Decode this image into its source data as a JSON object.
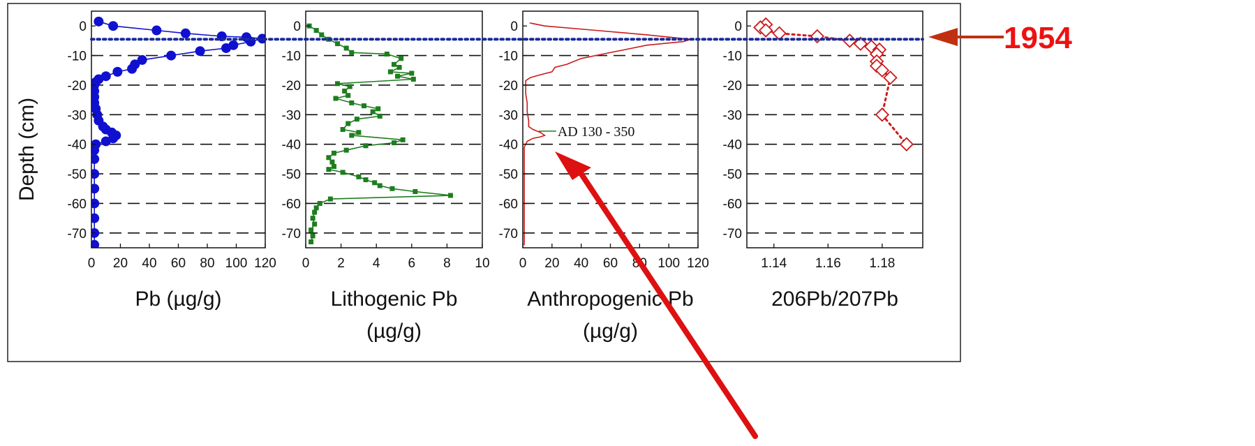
{
  "chart_data": {
    "type": "scatter",
    "y_axis_label": "Depth (cm)",
    "y_range": [
      -75,
      5
    ],
    "y_ticks": [
      0,
      -10,
      -20,
      -30,
      -40,
      -50,
      -60,
      -70
    ],
    "gridlines_y": [
      -10,
      -20,
      -30,
      -40,
      -50,
      -60,
      -70
    ],
    "gridline_style": "dashed",
    "colors": {
      "series1": "#1010d0",
      "series2": "#1e7d1e",
      "series3": "#cc1a1a",
      "series4": "#cc1a1a",
      "reference": "#1a2a9a",
      "arrow": "#dd1111",
      "marker_label": "#ee1111",
      "marker_arrow": "#c03010"
    },
    "reference_line": {
      "depth": -4.5,
      "style": "dotted",
      "label": "1954"
    },
    "panels": [
      {
        "xlabel": [
          "Pb (µg/g)"
        ],
        "x_range": [
          0,
          120
        ],
        "x_ticks": [
          0,
          20,
          40,
          60,
          80,
          100,
          120
        ],
        "series": [
          {
            "style": "line+filled-circle",
            "color": "#1010d0",
            "points": [
              [
                5,
                1.5
              ],
              [
                15,
                0
              ],
              [
                45,
                -1.5
              ],
              [
                65,
                -2.5
              ],
              [
                90,
                -3.5
              ],
              [
                107,
                -3.8
              ],
              [
                118,
                -4.3
              ],
              [
                110,
                -5.3
              ],
              [
                98,
                -6.5
              ],
              [
                93,
                -7.5
              ],
              [
                75,
                -8.5
              ],
              [
                55,
                -10
              ],
              [
                35,
                -11.5
              ],
              [
                30,
                -13
              ],
              [
                28,
                -14.5
              ],
              [
                18,
                -15.5
              ],
              [
                10,
                -17
              ],
              [
                5,
                -18
              ],
              [
                3,
                -19
              ],
              [
                2,
                -20
              ],
              [
                2,
                -22
              ],
              [
                2,
                -24
              ],
              [
                2,
                -26
              ],
              [
                3,
                -28
              ],
              [
                4,
                -30
              ],
              [
                5,
                -32
              ],
              [
                8,
                -34
              ],
              [
                10,
                -35
              ],
              [
                14,
                -36
              ],
              [
                17,
                -37
              ],
              [
                15,
                -38
              ],
              [
                10,
                -39
              ],
              [
                3,
                -40
              ],
              [
                2,
                -42
              ],
              [
                2,
                -45
              ],
              [
                2,
                -50
              ],
              [
                2,
                -55
              ],
              [
                2,
                -60
              ],
              [
                2,
                -65
              ],
              [
                2,
                -70
              ],
              [
                2,
                -74
              ]
            ]
          }
        ]
      },
      {
        "xlabel": [
          "Lithogenic Pb",
          "(µg/g)"
        ],
        "x_range": [
          0,
          10
        ],
        "x_ticks": [
          0,
          2,
          4,
          6,
          8,
          10
        ],
        "series": [
          {
            "style": "line+filled-square",
            "color": "#1e7d1e",
            "points": [
              [
                0.2,
                0
              ],
              [
                0.6,
                -1.5
              ],
              [
                0.9,
                -3
              ],
              [
                1.3,
                -4.5
              ],
              [
                1.8,
                -6
              ],
              [
                2.3,
                -7.5
              ],
              [
                2.6,
                -9
              ],
              [
                4.6,
                -9.5
              ],
              [
                5.4,
                -11
              ],
              [
                5.0,
                -13
              ],
              [
                5.3,
                -14
              ],
              [
                4.8,
                -15.5
              ],
              [
                6.0,
                -16
              ],
              [
                5.2,
                -17
              ],
              [
                6.1,
                -18
              ],
              [
                1.8,
                -19.5
              ],
              [
                2.5,
                -20.5
              ],
              [
                2.2,
                -22
              ],
              [
                2.4,
                -23.5
              ],
              [
                1.7,
                -24.5
              ],
              [
                2.6,
                -26
              ],
              [
                3.3,
                -27
              ],
              [
                4.1,
                -28
              ],
              [
                3.8,
                -29
              ],
              [
                4.2,
                -30.5
              ],
              [
                2.9,
                -31.5
              ],
              [
                2.4,
                -33
              ],
              [
                2.1,
                -35
              ],
              [
                3.0,
                -36
              ],
              [
                2.6,
                -37
              ],
              [
                5.5,
                -38.5
              ],
              [
                5.0,
                -39.5
              ],
              [
                3.4,
                -40.5
              ],
              [
                2.3,
                -42
              ],
              [
                1.6,
                -43
              ],
              [
                1.3,
                -44.5
              ],
              [
                1.5,
                -46
              ],
              [
                1.6,
                -47.5
              ],
              [
                1.3,
                -48.5
              ],
              [
                2.1,
                -49.5
              ],
              [
                3.0,
                -51
              ],
              [
                3.4,
                -52
              ],
              [
                3.9,
                -53
              ],
              [
                4.2,
                -54
              ],
              [
                4.9,
                -55
              ],
              [
                6.2,
                -56
              ],
              [
                8.2,
                -57.3
              ],
              [
                1.4,
                -58.5
              ],
              [
                0.8,
                -60
              ],
              [
                0.6,
                -61.5
              ],
              [
                0.5,
                -63
              ],
              [
                0.4,
                -65
              ],
              [
                0.5,
                -67
              ],
              [
                0.3,
                -69
              ],
              [
                0.4,
                -71
              ],
              [
                0.3,
                -73
              ]
            ]
          }
        ]
      },
      {
        "xlabel": [
          "Anthropogenic Pb",
          "(µg/g)"
        ],
        "x_range": [
          0,
          120
        ],
        "x_ticks": [
          0,
          20,
          40,
          60,
          80,
          100,
          120
        ],
        "annotation": {
          "text": "AD  130 - 350",
          "x": 20,
          "y": -36.5
        },
        "series": [
          {
            "style": "line",
            "color": "#cc1a1a",
            "points": [
              [
                5,
                1
              ],
              [
                15,
                0
              ],
              [
                50,
                -1.5
              ],
              [
                85,
                -3
              ],
              [
                115,
                -4.5
              ],
              [
                110,
                -5.3
              ],
              [
                85,
                -6.5
              ],
              [
                70,
                -8
              ],
              [
                55,
                -9.5
              ],
              [
                40,
                -11
              ],
              [
                35,
                -12
              ],
              [
                30,
                -13
              ],
              [
                22,
                -14
              ],
              [
                20,
                -15.5
              ],
              [
                12,
                -16.5
              ],
              [
                5,
                -17.5
              ],
              [
                2,
                -18.5
              ],
              [
                2,
                -20
              ],
              [
                2,
                -23
              ],
              [
                3,
                -26
              ],
              [
                3,
                -29
              ],
              [
                4,
                -32
              ],
              [
                4,
                -34
              ],
              [
                7,
                -35
              ],
              [
                12,
                -36
              ],
              [
                15,
                -37
              ],
              [
                12,
                -37.5
              ],
              [
                7,
                -38
              ],
              [
                3,
                -39
              ],
              [
                2,
                -40
              ],
              [
                1,
                -41
              ],
              [
                1,
                -45
              ],
              [
                1,
                -50
              ],
              [
                1,
                -55
              ],
              [
                1,
                -60
              ],
              [
                1,
                -65
              ],
              [
                1,
                -70
              ],
              [
                1,
                -74
              ]
            ]
          }
        ]
      },
      {
        "xlabel": [
          "206Pb/207Pb"
        ],
        "x_range": [
          1.13,
          1.195
        ],
        "x_ticks": [
          1.14,
          1.16,
          1.18
        ],
        "x_tick_labels": [
          "1.14",
          "1.16",
          "1.18"
        ],
        "series": [
          {
            "style": "dotted+open-diamond",
            "color": "#cc1a1a",
            "points": [
              [
                1.137,
                0.5
              ],
              [
                1.135,
                -0.5
              ],
              [
                1.137,
                -1.5
              ],
              [
                1.142,
                -2.5
              ],
              [
                1.156,
                -3.5
              ],
              [
                1.168,
                -5
              ],
              [
                1.172,
                -6
              ],
              [
                1.176,
                -7
              ],
              [
                1.179,
                -8
              ],
              [
                1.178,
                -9.5
              ],
              [
                1.178,
                -12
              ],
              [
                1.178,
                -13.5
              ],
              [
                1.18,
                -15
              ],
              [
                1.183,
                -17.5
              ],
              [
                1.18,
                -30
              ],
              [
                1.189,
                -40
              ]
            ]
          }
        ]
      }
    ],
    "annotations": [
      {
        "text": "1954",
        "type": "label-with-arrow",
        "color": "#ee1111"
      },
      {
        "type": "arrow",
        "color": "#dd1111",
        "points_to": "AD 130 - 350 peak"
      }
    ]
  }
}
